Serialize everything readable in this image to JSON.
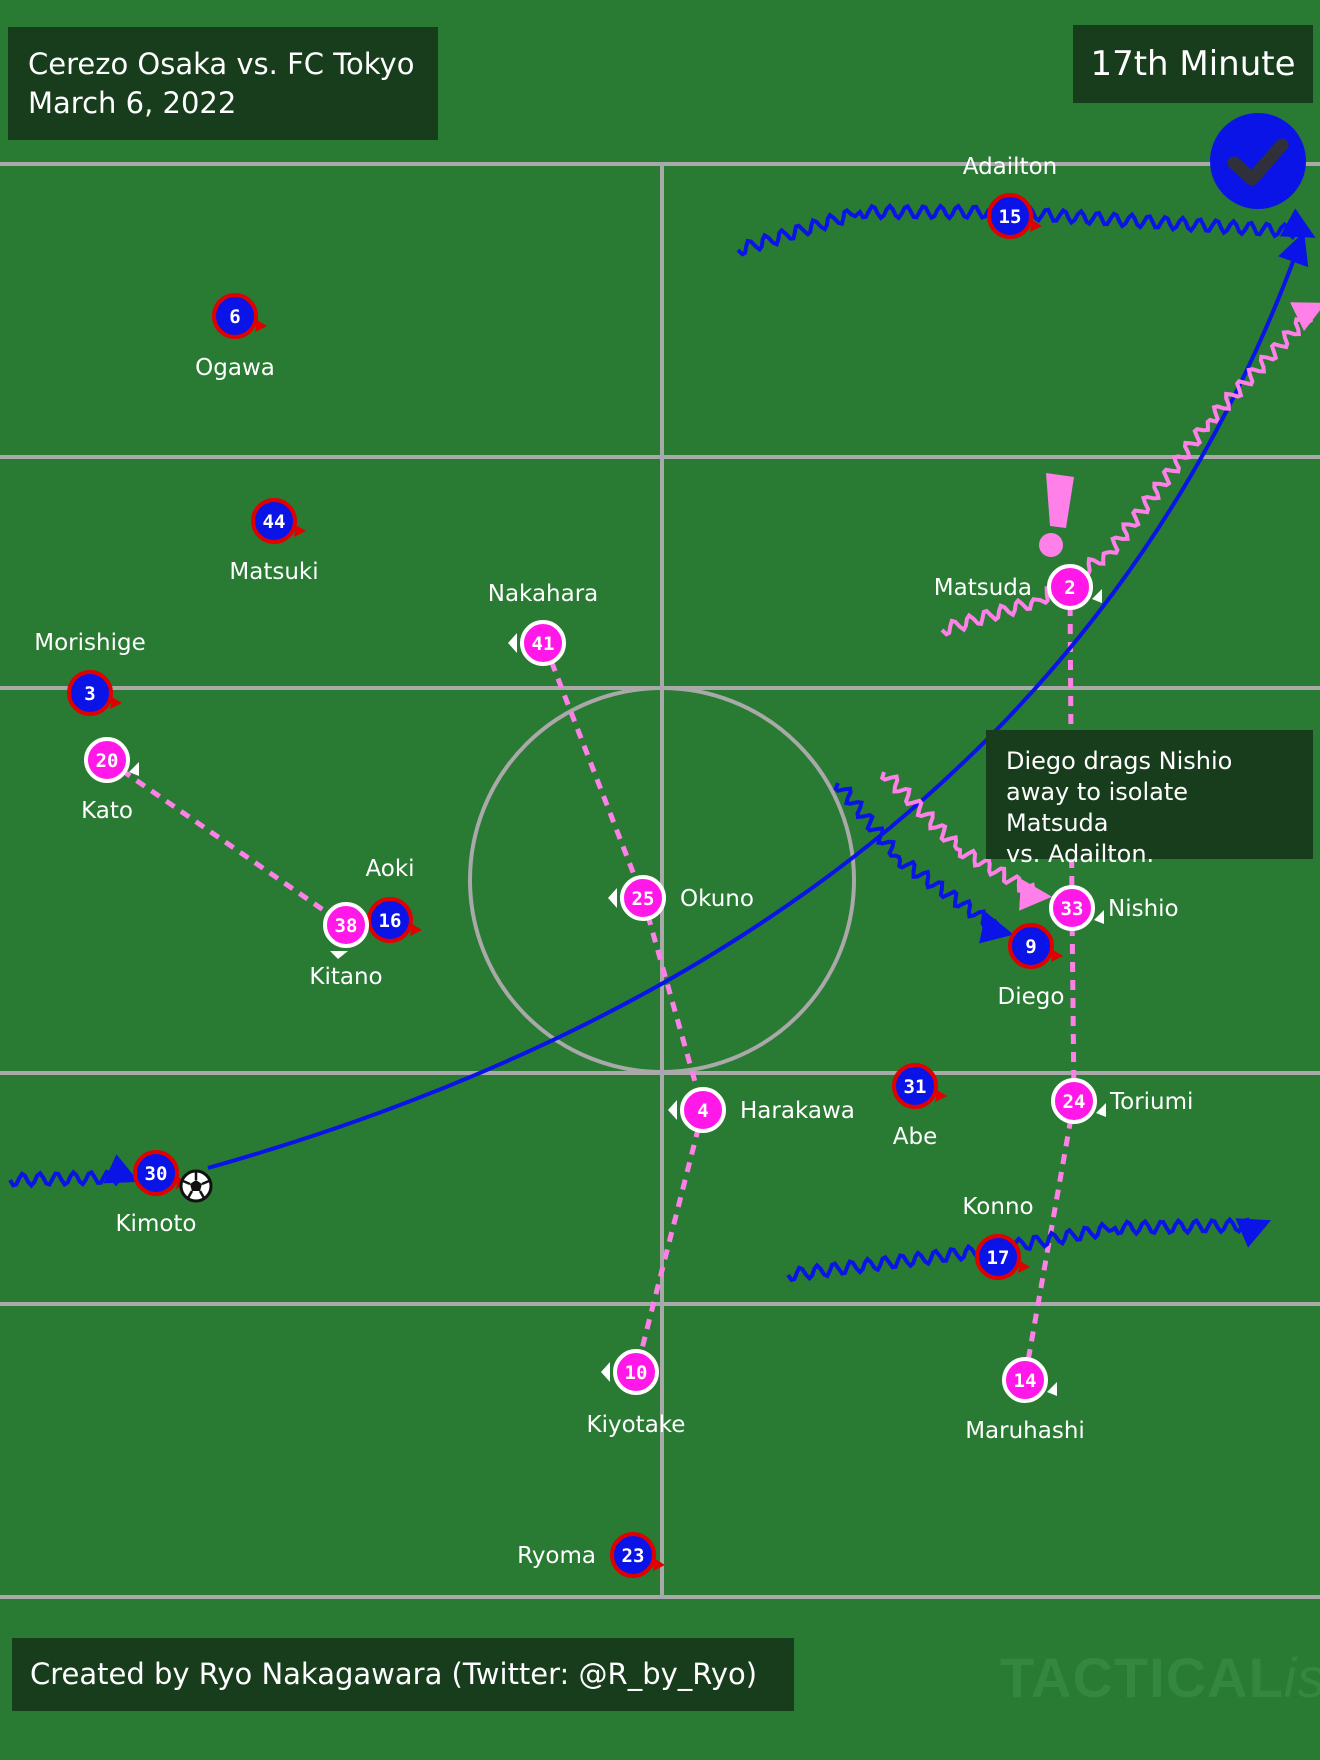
{
  "header": {
    "match": "Cerezo Osaka vs. FC Tokyo",
    "date": "March 6, 2022"
  },
  "minute": "17th Minute",
  "annotation": {
    "line1": "Diego drags Nishio",
    "line2": "away to isolate Matsuda",
    "line3": "vs. Adailton."
  },
  "credit": "Created by Ryo Nakagawara (Twitter: @R_by_Ryo)",
  "watermark": {
    "main": "TACTICAL",
    "suffix": "ista"
  },
  "colors": {
    "pitch": "#297a33",
    "lines": "#a9a9a9",
    "tokyo_fill": "#0b14e6",
    "tokyo_ring": "#e00000",
    "cerezo_fill": "#ff18e8",
    "cerezo_ring": "#ffffff",
    "dashed_link": "#ff80e8",
    "pass": "#0b14e6",
    "run_cerezo": "#ff80e8"
  },
  "icons": {
    "success": "check-circle-icon",
    "ball": "soccer-ball-icon",
    "alert": "exclamation-icon"
  },
  "players": {
    "fc_tokyo": [
      {
        "number": "15",
        "name": "Adailton"
      },
      {
        "number": "6",
        "name": "Ogawa"
      },
      {
        "number": "44",
        "name": "Matsuki"
      },
      {
        "number": "3",
        "name": "Morishige"
      },
      {
        "number": "16",
        "name": "Aoki"
      },
      {
        "number": "9",
        "name": "Diego"
      },
      {
        "number": "31",
        "name": "Abe"
      },
      {
        "number": "30",
        "name": "Kimoto"
      },
      {
        "number": "17",
        "name": "Konno"
      },
      {
        "number": "23",
        "name": "Ryoma"
      }
    ],
    "cerezo_osaka": [
      {
        "number": "2",
        "name": "Matsuda"
      },
      {
        "number": "41",
        "name": "Nakahara"
      },
      {
        "number": "20",
        "name": "Kato"
      },
      {
        "number": "38",
        "name": "Kitano"
      },
      {
        "number": "25",
        "name": "Okuno"
      },
      {
        "number": "33",
        "name": "Nishio"
      },
      {
        "number": "4",
        "name": "Harakawa"
      },
      {
        "number": "24",
        "name": "Toriumi"
      },
      {
        "number": "10",
        "name": "Kiyotake"
      },
      {
        "number": "14",
        "name": "Maruhashi"
      }
    ]
  }
}
